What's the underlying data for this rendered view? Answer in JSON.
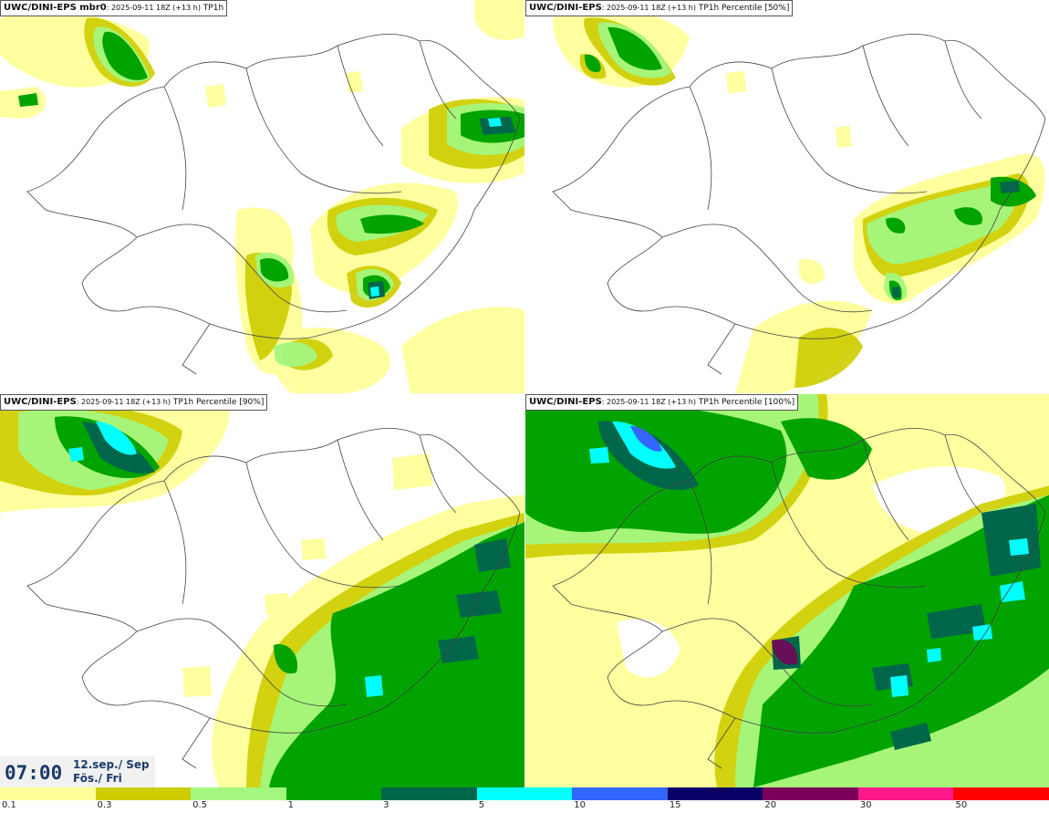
{
  "panels": [
    {
      "model": "UWC/DINI-EPS",
      "suffix": " mbr0",
      "run": ": 2025-09-11 18Z (+13 h)",
      "field": " TP1h"
    },
    {
      "model": "UWC/DINI-EPS",
      "suffix": "",
      "run": ": 2025-09-11 18Z (+13 h)",
      "field": " TP1h Percentile [50%]"
    },
    {
      "model": "UWC/DINI-EPS",
      "suffix": "",
      "run": ": 2025-09-11 18Z (+13 h)",
      "field": " TP1h Percentile [90%]"
    },
    {
      "model": "UWC/DINI-EPS",
      "suffix": "",
      "run": ": 2025-09-11 18Z (+13 h)",
      "field": " TP1h Percentile [100%]"
    }
  ],
  "valid_time": {
    "hour": "07:00",
    "date_line1": "12.sep./ Sep",
    "date_line2": "Fös./ Fri"
  },
  "colorbar": {
    "colors": [
      "#ffff9a",
      "#cdcd00",
      "#a3f77e",
      "#00a300",
      "#00664a",
      "#00ffff",
      "#3366ff",
      "#0a0066",
      "#7a0059",
      "#ff1a8a",
      "#ff0000"
    ],
    "tick_labels": [
      "0.1",
      "0.3",
      "0.5",
      "1",
      "3",
      "5",
      "10",
      "15",
      "20",
      "30",
      "50"
    ]
  }
}
